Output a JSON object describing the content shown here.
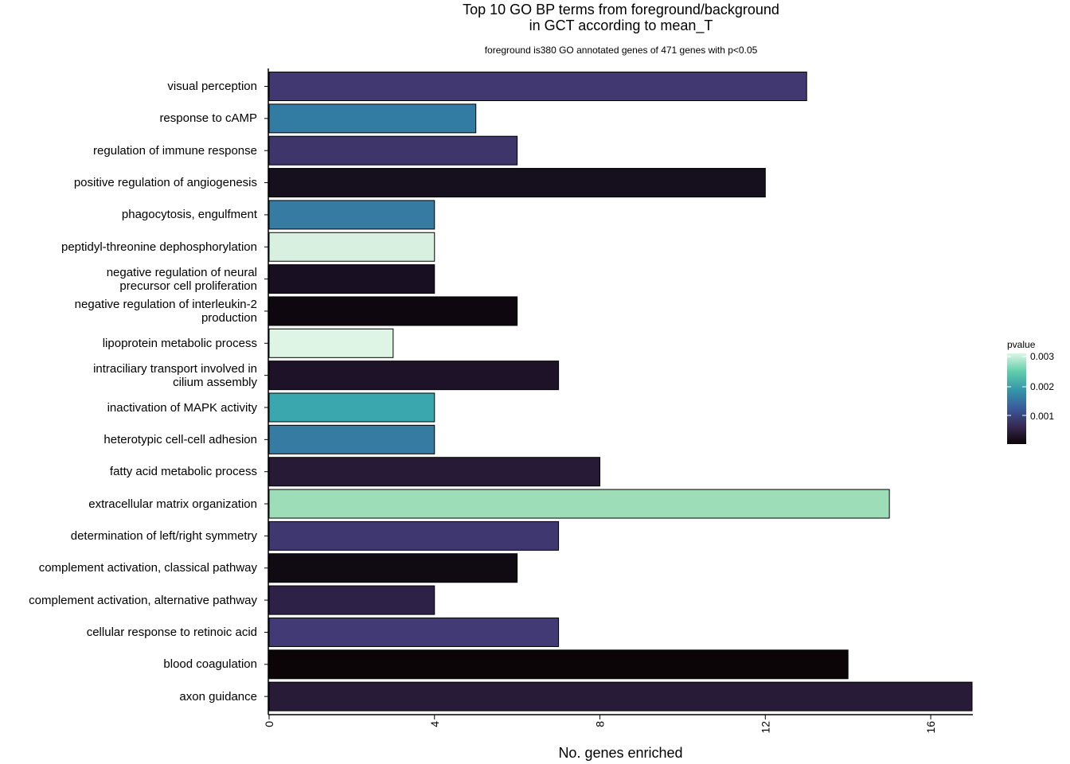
{
  "chart_data": {
    "type": "bar",
    "orientation": "horizontal",
    "title": "Top 10 GO BP terms from foreground/background",
    "title_line2": "in GCT according to mean_T",
    "subtitle": "foreground is380 GO annotated genes of 471 genes with p<0.05",
    "xlabel": "No. genes enriched",
    "ylabel": "",
    "xlim": [
      0,
      17
    ],
    "xticks": [
      "0",
      "4",
      "8",
      "12",
      "16"
    ],
    "xtick_values": [
      0,
      4,
      8,
      12,
      16
    ],
    "categories": [
      "visual perception",
      "response to cAMP",
      "regulation of immune response",
      "positive regulation of angiogenesis",
      "phagocytosis, engulfment",
      "peptidyl-threonine dephosphorylation",
      "negative regulation of neural\nprecursor cell proliferation",
      "negative regulation of interleukin-2\nproduction",
      "lipoprotein metabolic process",
      "intraciliary transport involved in\ncilium assembly",
      "inactivation of MAPK activity",
      "heterotypic cell-cell adhesion",
      "fatty acid metabolic process",
      "extracellular matrix organization",
      "determination of left/right symmetry",
      "complement activation, classical pathway",
      "complement activation, alternative pathway",
      "cellular response to retinoic acid",
      "blood coagulation",
      "axon guidance"
    ],
    "values": [
      13,
      5,
      6,
      12,
      4,
      4,
      4,
      6,
      3,
      7,
      4,
      4,
      8,
      15,
      7,
      6,
      4,
      7,
      14,
      17
    ],
    "bar_colors": [
      "#413871",
      "#327CA4",
      "#3E356B",
      "#160F1E",
      "#357BA2",
      "#D7F0E0",
      "#180F22",
      "#0E0710",
      "#DEF5E5",
      "#1E1229",
      "#3AA7AF",
      "#357BA2",
      "#271A37",
      "#9DDEB8",
      "#3F3870",
      "#100A13",
      "#2D2148",
      "#423A74",
      "#0B0507",
      "#281B38"
    ],
    "legend": {
      "title": "pvalue",
      "ticks": [
        "0.003",
        "0.002",
        "0.001"
      ],
      "colormap": "mako",
      "placement": "right"
    },
    "grid": false
  }
}
